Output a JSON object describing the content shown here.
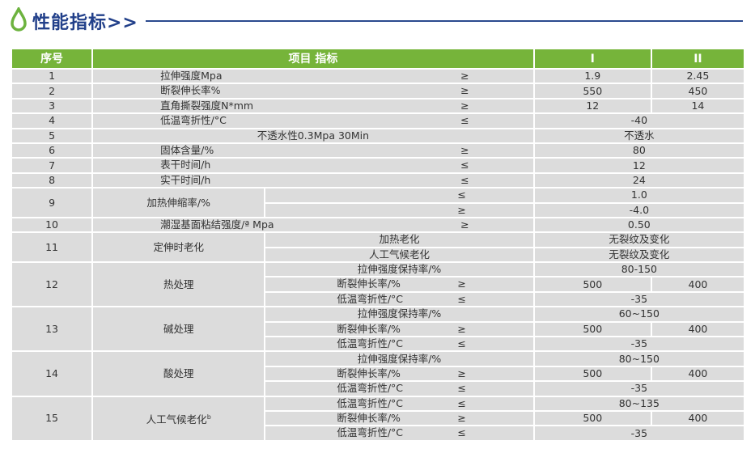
{
  "title": "性能指标>>",
  "colors": {
    "header_green": "#76b43a",
    "title_blue": "#22408a",
    "cell_gray": "#dcdcdc"
  },
  "header": {
    "no": "序号",
    "item": "项目 指标",
    "I": "I",
    "II": "II"
  },
  "rows": [
    {
      "no": "1",
      "item": "拉伸强度Mpa",
      "op": "≥",
      "I": "1.9",
      "II": "2.45"
    },
    {
      "no": "2",
      "item": "断裂伸长率%",
      "op": "≥",
      "I": "550",
      "II": "450"
    },
    {
      "no": "3",
      "item": "直角撕裂强度N*mm",
      "op": "≥",
      "I": "12",
      "II": "14"
    },
    {
      "no": "4",
      "item": "低温弯折性/°C",
      "op": "≤",
      "value": "-40"
    },
    {
      "no": "5",
      "item": "不透水性0.3Mpa 30Min",
      "op": "",
      "value": "不透水",
      "center": true
    },
    {
      "no": "6",
      "item": "固体含量/%",
      "op": "≥",
      "value": "80"
    },
    {
      "no": "7",
      "item": "表干时间/h",
      "op": "≤",
      "value": "12"
    },
    {
      "no": "8",
      "item": "实干时间/h",
      "op": "≤",
      "value": "24"
    },
    {
      "no": "9",
      "item": "加热伸缩率/%",
      "sub": [
        {
          "label": "",
          "op": "≤",
          "value": "1.0"
        },
        {
          "label": "",
          "op": "≥",
          "value": "-4.0"
        }
      ]
    },
    {
      "no": "10",
      "item": "潮湿基面粘结强度/ª Mpa",
      "op": "≥",
      "value": "0.50"
    },
    {
      "no": "11",
      "item": "定伸时老化",
      "sub": [
        {
          "label": "加热老化",
          "op": "",
          "value": "无裂纹及变化"
        },
        {
          "label": "人工气候老化",
          "op": "",
          "value": "无裂纹及变化"
        }
      ]
    },
    {
      "no": "12",
      "item": "热处理",
      "sub": [
        {
          "label": "拉伸强度保持率/%",
          "op": "",
          "value": "80-150"
        },
        {
          "label": "断裂伸长率/%",
          "op": "≥",
          "I": "500",
          "II": "400"
        },
        {
          "label": "低温弯折性/°C",
          "op": "≤",
          "value": "-35"
        }
      ]
    },
    {
      "no": "13",
      "item": "碱处理",
      "sub": [
        {
          "label": "拉伸强度保持率/%",
          "op": "",
          "value": "60~150"
        },
        {
          "label": "断裂伸长率/%",
          "op": "≥",
          "I": "500",
          "II": "400"
        },
        {
          "label": "低温弯折性/°C",
          "op": "≤",
          "value": "-35"
        }
      ]
    },
    {
      "no": "14",
      "item": "酸处理",
      "sub": [
        {
          "label": "拉伸强度保持率/%",
          "op": "",
          "value": "80~150"
        },
        {
          "label": "断裂伸长率/%",
          "op": "≥",
          "I": "500",
          "II": "400"
        },
        {
          "label": "低温弯折性/°C",
          "op": "≤",
          "value": "-35"
        }
      ]
    },
    {
      "no": "15",
      "item": "人工气候老化",
      "item_sup": "b",
      "sub": [
        {
          "label": "低温弯折性/°C",
          "op": "≤",
          "value": "80~135"
        },
        {
          "label": "断裂伸长率/%",
          "op": "≥",
          "I": "500",
          "II": "400"
        },
        {
          "label": "低温弯折性/°C",
          "op": "≤",
          "value": "-35"
        }
      ]
    }
  ]
}
